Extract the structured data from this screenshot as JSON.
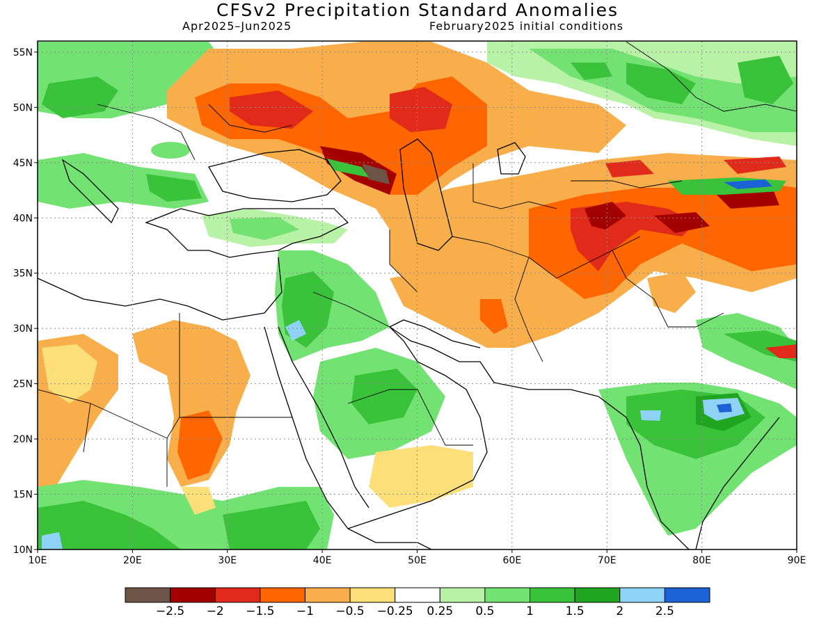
{
  "title": "CFSv2 Precipitation Standard Anomalies",
  "subtitle_left": "Apr2025–Jun2025",
  "subtitle_right": "February2025 initial conditions",
  "map": {
    "lon_range": [
      10,
      90
    ],
    "lat_range": [
      10,
      56
    ],
    "lon_ticks": [
      "10E",
      "20E",
      "30E",
      "40E",
      "50E",
      "60E",
      "70E",
      "80E",
      "90E"
    ],
    "lat_ticks": [
      "55N",
      "50N",
      "45N",
      "40N",
      "35N",
      "30N",
      "25N",
      "20N",
      "15N",
      "10N"
    ]
  },
  "colorbar": {
    "colors": [
      "#6e5446",
      "#a30000",
      "#e02a1a",
      "#ff6600",
      "#f8ae4a",
      "#fddf7a",
      "#ffffff",
      "#b8f2a6",
      "#72e272",
      "#3bc23b",
      "#20a520",
      "#8ed3f5",
      "#1b62d6"
    ],
    "labels": [
      "−2.5",
      "−2",
      "−1.5",
      "−1",
      "−0.5",
      "−0.25",
      "0.25",
      "0.5",
      "1",
      "1.5",
      "2",
      "2.5"
    ]
  }
}
